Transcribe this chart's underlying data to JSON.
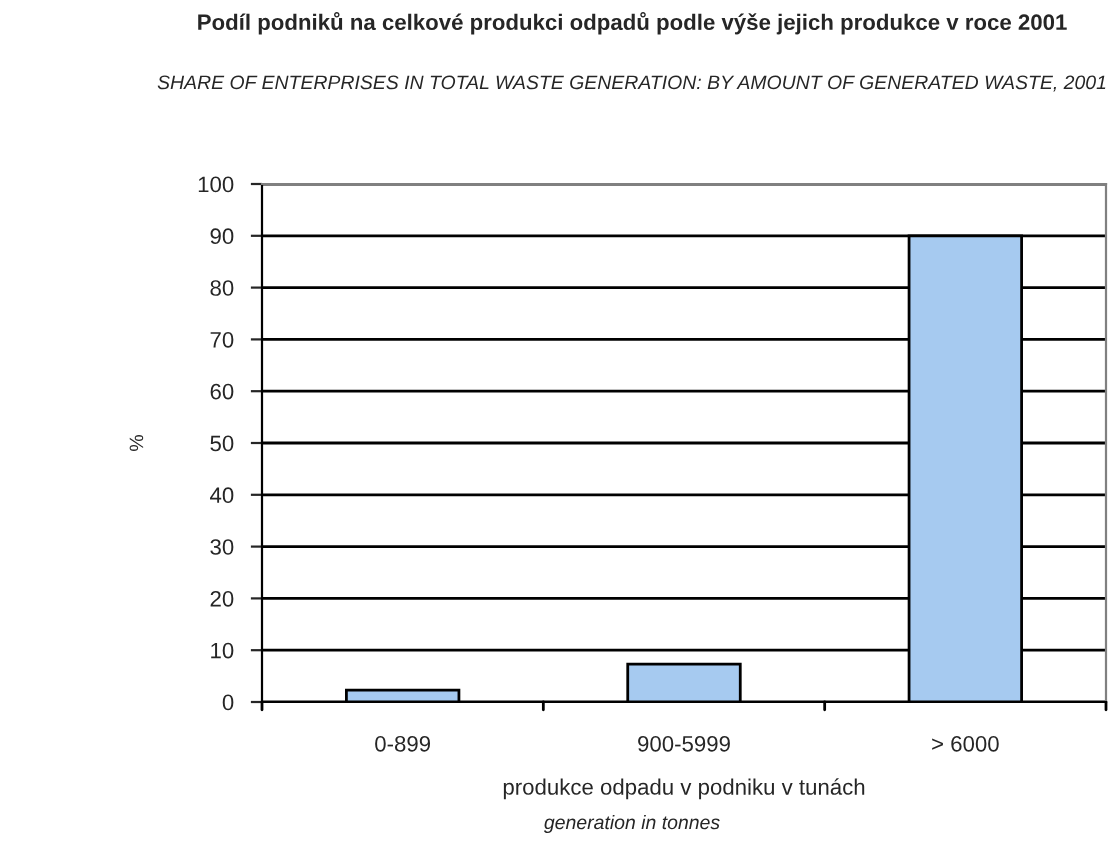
{
  "chart_data": {
    "type": "bar",
    "title": "Podíl podniků na celkové produkci odpadů podle výše jejich produkce v roce 2001",
    "subtitle": "SHARE OF ENTERPRISES IN TOTAL WASTE GENERATION: BY AMOUNT OF GENERATED WASTE, 2001",
    "xlabel": "produkce odpadu v podniku v tunách",
    "ylabel": "%",
    "annotations": [
      "generation in tonnes"
    ],
    "categories": [
      "0-899",
      "900-5999",
      "> 6000"
    ],
    "values": [
      2.3,
      7.3,
      90.0
    ],
    "color": "#a6caf0",
    "ylim": [
      0,
      100
    ],
    "yticks": [
      0,
      10,
      20,
      30,
      40,
      50,
      60,
      70,
      80,
      90,
      100
    ],
    "grid": "y"
  }
}
